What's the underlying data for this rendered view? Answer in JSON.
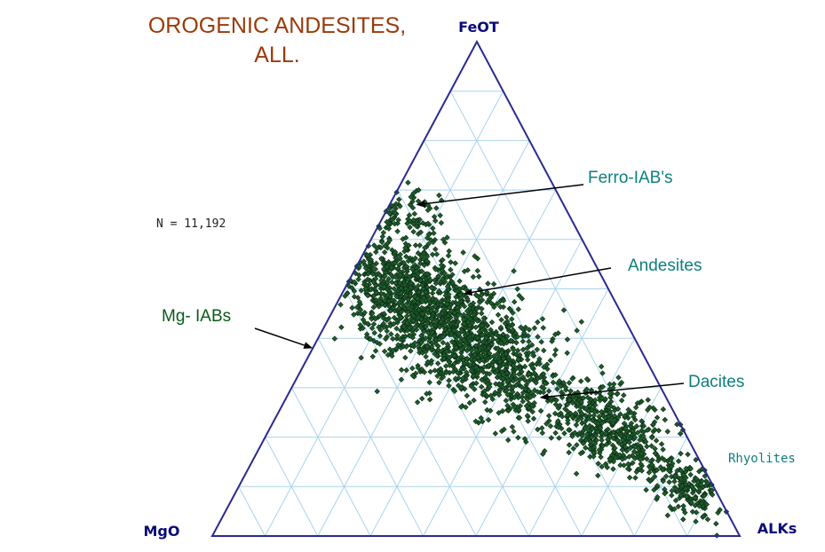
{
  "chart_data": {
    "type": "ternary-scatter",
    "title_lines": [
      "OROGENIC ANDESITES,",
      "ALL."
    ],
    "apices": {
      "top": "FeOT",
      "left": "MgO",
      "right": "ALKs"
    },
    "count_label": "N = 11,192",
    "grid": true,
    "grid_divisions": 10,
    "annotations": [
      {
        "id": "ferro",
        "text": "Ferro-IAB's",
        "color": "#0e7e7e",
        "target": {
          "FeOT": 0.67,
          "MgO": 0.28,
          "ALKs": 0.05
        }
      },
      {
        "id": "andesites",
        "text": "Andesites",
        "color": "#0e7e7e",
        "target": {
          "FeOT": 0.49,
          "MgO": 0.28,
          "ALKs": 0.23
        }
      },
      {
        "id": "mg",
        "text": "Mg- IABs",
        "color": "#0a5a1a",
        "target": {
          "FeOT": 0.38,
          "MgO": 0.62,
          "ALKs": 0.0
        }
      },
      {
        "id": "dacites",
        "text": "Dacites",
        "color": "#0e7e7e",
        "target": {
          "FeOT": 0.28,
          "MgO": 0.24,
          "ALKs": 0.48
        }
      },
      {
        "id": "rhyolites",
        "text": "Rhyolites",
        "color": "#0e7e7e",
        "target": null
      }
    ],
    "point_color": "#1e5c2c",
    "density_clusters": [
      {
        "center": {
          "FeOT": 0.47,
          "MgO": 0.38,
          "ALKs": 0.15
        },
        "spread": 0.07,
        "weight": 0.42
      },
      {
        "center": {
          "FeOT": 0.36,
          "MgO": 0.29,
          "ALKs": 0.35
        },
        "spread": 0.065,
        "weight": 0.28
      },
      {
        "center": {
          "FeOT": 0.22,
          "MgO": 0.14,
          "ALKs": 0.64
        },
        "spread": 0.05,
        "weight": 0.18
      },
      {
        "center": {
          "FeOT": 0.1,
          "MgO": 0.05,
          "ALKs": 0.85
        },
        "spread": 0.035,
        "weight": 0.08
      },
      {
        "center": {
          "FeOT": 0.66,
          "MgO": 0.3,
          "ALKs": 0.04
        },
        "spread": 0.035,
        "weight": 0.04
      }
    ]
  }
}
